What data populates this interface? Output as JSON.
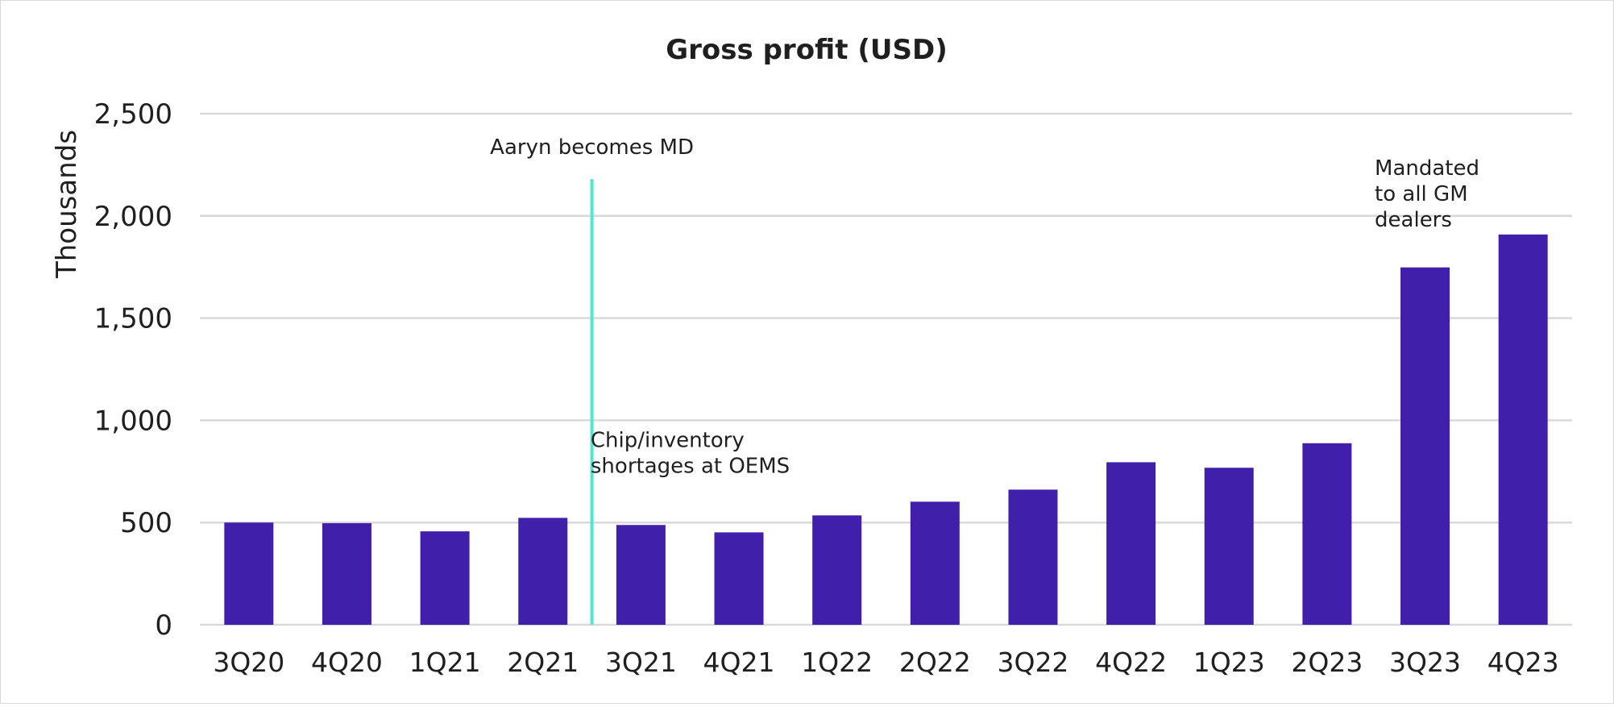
{
  "chart_data": {
    "type": "bar",
    "title": "Gross profit (USD)",
    "xlabel": "",
    "ylabel": "Thousands",
    "ylim": [
      0,
      2500
    ],
    "yticks": [
      0,
      500,
      1000,
      1500,
      2000,
      2500
    ],
    "ytick_labels": [
      "0",
      "500",
      "1,000",
      "1,500",
      "2,000",
      "2,500"
    ],
    "grid": true,
    "categories": [
      "3Q20",
      "4Q20",
      "1Q21",
      "2Q21",
      "3Q21",
      "4Q21",
      "1Q22",
      "2Q22",
      "3Q22",
      "4Q22",
      "1Q23",
      "2Q23",
      "3Q23",
      "4Q23"
    ],
    "values": [
      500,
      497,
      457,
      523,
      488,
      452,
      535,
      602,
      661,
      795,
      768,
      888,
      1748,
      1909
    ],
    "bar_color": "#4020aa",
    "gridline_color": "#d9d9d9",
    "marker": {
      "label": "Aaryn becomes MD",
      "between": [
        "2Q21",
        "3Q21"
      ],
      "top_value": 2180,
      "color": "#4de8d0"
    },
    "annotations": [
      {
        "lines": [
          "Chip/inventory",
          "shortages at OEMS"
        ],
        "near": "3Q21",
        "value": 870
      },
      {
        "lines": [
          "Mandated",
          "to all GM",
          "dealers"
        ],
        "near": "3Q23",
        "value": 2200
      }
    ]
  }
}
